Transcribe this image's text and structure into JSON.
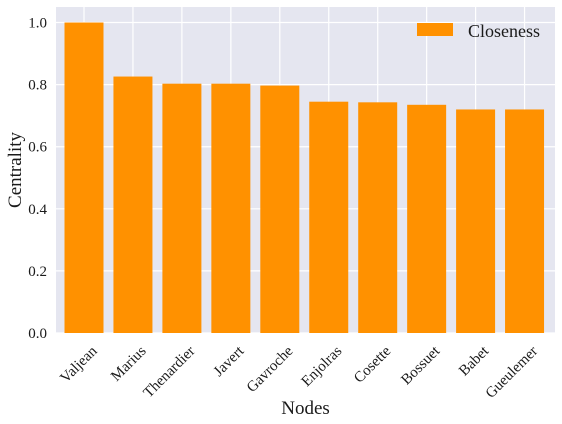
{
  "chart_data": {
    "type": "bar",
    "categories": [
      "Valjean",
      "Marius",
      "Thenardier",
      "Javert",
      "Gavroche",
      "Enjolras",
      "Cosette",
      "Bossuet",
      "Babet",
      "Gueulemer"
    ],
    "series": [
      {
        "name": "Closeness",
        "values": [
          1.0,
          0.826,
          0.803,
          0.803,
          0.797,
          0.745,
          0.743,
          0.735,
          0.72,
          0.72
        ],
        "color": "#ff9100"
      }
    ],
    "xlabel": "Nodes",
    "ylabel": "Centrality",
    "ylim": [
      0,
      1.05
    ],
    "yticks": [
      "0.0",
      "0.2",
      "0.4",
      "0.6",
      "0.8",
      "1.0"
    ],
    "grid": true,
    "legend_position": "top-right",
    "background_color": "#e5e6f0",
    "grid_color": "#ffffff"
  }
}
